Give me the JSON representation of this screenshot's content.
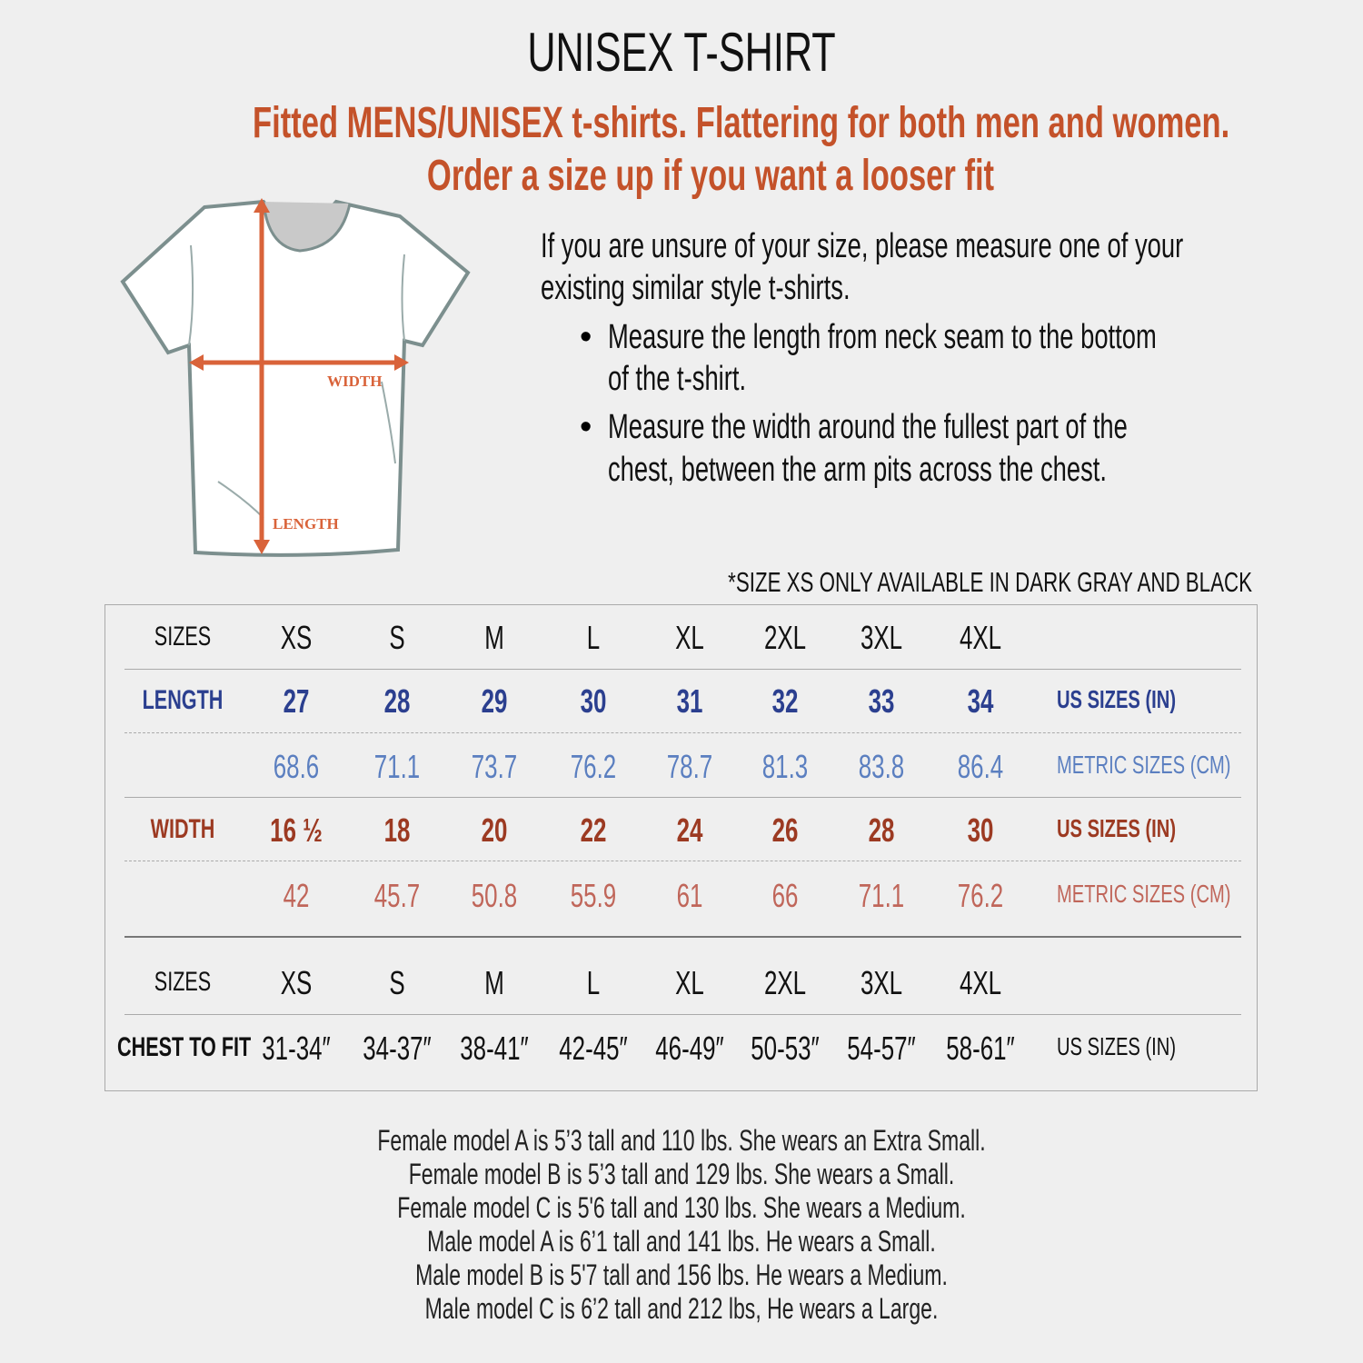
{
  "header": {
    "title": "UNISEX T-SHIRT",
    "subtitle_lines": [
      "Fitted MENS/UNISEX t-shirts. Flattering for both men and women.",
      "Order a size up if you want a looser fit"
    ]
  },
  "diagram": {
    "width_label": "WIDTH",
    "length_label": "LENGTH"
  },
  "instructions": {
    "intro_lines": [
      "If you are unsure of your size, please measure one of your",
      "existing similar style t-shirts."
    ],
    "bullets": [
      [
        "Measure the length from neck seam to the bottom",
        "of the t-shirt."
      ],
      [
        "Measure the width around the fullest part of the",
        "chest, between the arm pits across the chest."
      ]
    ]
  },
  "note": "*SIZE XS ONLY AVAILABLE IN DARK GRAY AND BLACK",
  "table": {
    "rows": [
      {
        "label": "SIZES",
        "values": [
          "XS",
          "S",
          "M",
          "L",
          "XL",
          "2XL",
          "3XL",
          "4XL"
        ]
      },
      {
        "label": "LENGTH",
        "values": [
          "27",
          "28",
          "29",
          "30",
          "31",
          "32",
          "33",
          "34"
        ],
        "unit": "US SIZES (IN)"
      },
      {
        "values": [
          "68.6",
          "71.1",
          "73.7",
          "76.2",
          "78.7",
          "81.3",
          "83.8",
          "86.4"
        ],
        "unit": "METRIC SIZES (CM)"
      },
      {
        "label": "WIDTH",
        "values": [
          "16 ½",
          "18",
          "20",
          "22",
          "24",
          "26",
          "28",
          "30"
        ],
        "unit": "US SIZES (IN)"
      },
      {
        "values": [
          "42",
          "45.7",
          "50.8",
          "55.9",
          "61",
          "66",
          "71.1",
          "76.2"
        ],
        "unit": "METRIC SIZES (CM)"
      },
      {
        "label": "SIZES",
        "values": [
          "XS",
          "S",
          "M",
          "L",
          "XL",
          "2XL",
          "3XL",
          "4XL"
        ]
      },
      {
        "label": "CHEST TO FIT",
        "values": [
          "31-34″",
          "34-37″",
          "38-41″",
          "42-45″",
          "46-49″",
          "50-53″",
          "54-57″",
          "58-61″"
        ],
        "unit": "US SIZES (IN)"
      }
    ]
  },
  "footer": {
    "lines": [
      "Female model A is 5’3 tall and 110 lbs. She wears an Extra Small.",
      "Female model B is 5’3 tall and 129 lbs. She wears a Small.",
      "Female model C is 5'6 tall and 130 lbs. She wears a Medium.",
      "Male model A is 6’1 tall and 141 lbs. He wears a Small.",
      "Male model B is 5'7 tall and 156 lbs. He wears a Medium.",
      "Male model C is 6’2 tall and 212 lbs, He wears a Large."
    ]
  }
}
